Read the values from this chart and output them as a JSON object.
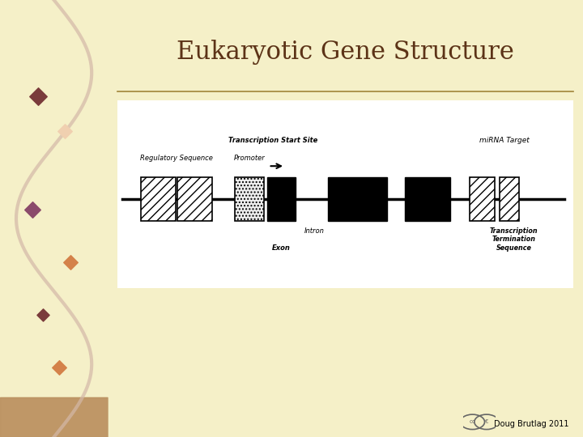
{
  "title": "Eukaryotic Gene Structure",
  "title_color": "#5C3317",
  "title_fontsize": 22,
  "bg_left": "#E8A878",
  "bg_right": "#F5F0C8",
  "separator_color": "#8B6914",
  "mirna_label": "miRNA Target",
  "regulatory_label": "Regulatory Sequence",
  "promoter_label": "Promoter",
  "transcription_start_label": "Transcription Start Site",
  "intron_label": "Intron",
  "exon_label": "Exon",
  "termination_label": "Transcription\nTermination\nSequence",
  "credit": "Doug Brutlag 2011",
  "line_color": "black",
  "line_lw": 3
}
